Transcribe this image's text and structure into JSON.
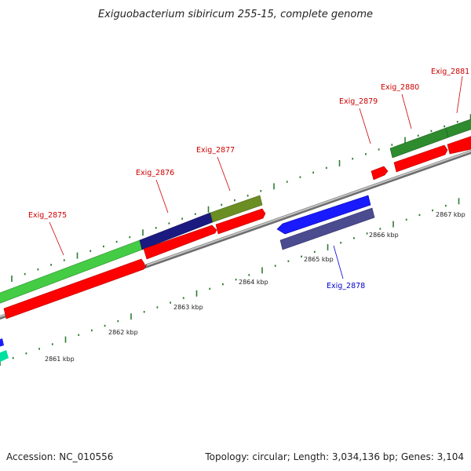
{
  "title": "Exiguobacterium sibiricum 255-15, complete genome",
  "accession": "Accession: NC_010556",
  "topology": "Topology: circular; Length: 3,034,136 bp; Genes: 3,104",
  "scale_labels": [
    "2861 kbp",
    "2862 kbp",
    "2863 kbp",
    "2864 kbp",
    "2865 kbp",
    "2866 kbp",
    "2867 kbp"
  ],
  "gene_labels": [
    {
      "name": "Exig_2875",
      "color": "#cc0000"
    },
    {
      "name": "Exig_2876",
      "color": "#cc0000"
    },
    {
      "name": "Exig_2877",
      "color": "#cc0000"
    },
    {
      "name": "Exig_2878",
      "color": "#0000cc"
    },
    {
      "name": "Exig_2879",
      "color": "#cc0000"
    },
    {
      "name": "Exig_2880",
      "color": "#cc0000"
    },
    {
      "name": "Exig_2881",
      "color": "#cc0000"
    }
  ],
  "colors": {
    "backbone": "#999999",
    "cds": "#ff0000",
    "tick": "#2e7d32",
    "cog_green": "#44cc44",
    "cog_navy": "#1a1a80",
    "cog_olive": "#6b8e23",
    "cog_darkgreen": "#2e8b2e",
    "cog_blue": "#1a1aff",
    "cog_slate": "#4b4b90",
    "cog_teal": "#00e0a0"
  }
}
